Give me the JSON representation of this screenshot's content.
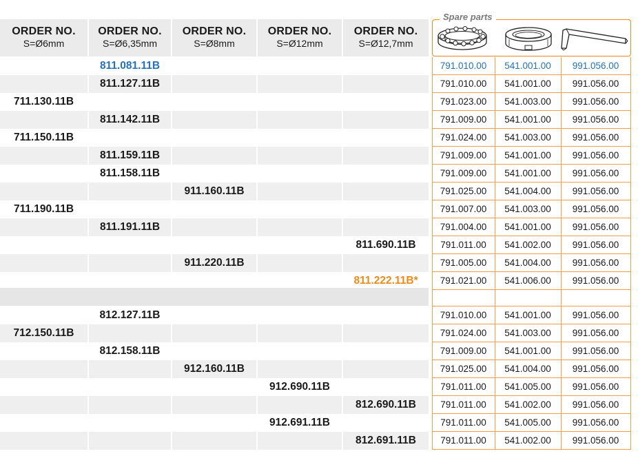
{
  "headers": [
    {
      "title": "ORDER NO.",
      "sub": "S=Ø6mm"
    },
    {
      "title": "ORDER NO.",
      "sub": "S=Ø6,35mm"
    },
    {
      "title": "ORDER NO.",
      "sub": "S=Ø8mm"
    },
    {
      "title": "ORDER NO.",
      "sub": "S=Ø12mm"
    },
    {
      "title": "ORDER NO.",
      "sub": "S=Ø12,7mm"
    }
  ],
  "spare_parts": {
    "title": "Spare parts",
    "icons": [
      "ball-bearing-icon",
      "bearing-ring-icon",
      "hex-key-icon"
    ]
  },
  "colors": {
    "orange": "#ec8a1c",
    "blue": "#2672b8",
    "stripe": "#efefef"
  },
  "rows": [
    {
      "orders": [
        "",
        "811.081.11B",
        "",
        "",
        ""
      ],
      "spares": [
        "791.010.00",
        "541.001.00",
        "991.056.00"
      ],
      "hl": "blue"
    },
    {
      "orders": [
        "",
        "811.127.11B",
        "",
        "",
        ""
      ],
      "spares": [
        "791.010.00",
        "541.001.00",
        "991.056.00"
      ]
    },
    {
      "orders": [
        "711.130.11B",
        "",
        "",
        "",
        ""
      ],
      "spares": [
        "791.023.00",
        "541.003.00",
        "991.056.00"
      ]
    },
    {
      "orders": [
        "",
        "811.142.11B",
        "",
        "",
        ""
      ],
      "spares": [
        "791.009.00",
        "541.001.00",
        "991.056.00"
      ]
    },
    {
      "orders": [
        "711.150.11B",
        "",
        "",
        "",
        ""
      ],
      "spares": [
        "791.024.00",
        "541.003.00",
        "991.056.00"
      ]
    },
    {
      "orders": [
        "",
        "811.159.11B",
        "",
        "",
        ""
      ],
      "spares": [
        "791.009.00",
        "541.001.00",
        "991.056.00"
      ]
    },
    {
      "orders": [
        "",
        "811.158.11B",
        "",
        "",
        ""
      ],
      "spares": [
        "791.009.00",
        "541.001.00",
        "991.056.00"
      ]
    },
    {
      "orders": [
        "",
        "",
        "911.160.11B",
        "",
        ""
      ],
      "spares": [
        "791.025.00",
        "541.004.00",
        "991.056.00"
      ]
    },
    {
      "orders": [
        "711.190.11B",
        "",
        "",
        "",
        ""
      ],
      "spares": [
        "791.007.00",
        "541.003.00",
        "991.056.00"
      ]
    },
    {
      "orders": [
        "",
        "811.191.11B",
        "",
        "",
        ""
      ],
      "spares": [
        "791.004.00",
        "541.001.00",
        "991.056.00"
      ]
    },
    {
      "orders": [
        "",
        "",
        "",
        "",
        "811.690.11B"
      ],
      "spares": [
        "791.011.00",
        "541.002.00",
        "991.056.00"
      ]
    },
    {
      "orders": [
        "",
        "",
        "911.220.11B",
        "",
        ""
      ],
      "spares": [
        "791.005.00",
        "541.004.00",
        "991.056.00"
      ]
    },
    {
      "orders": [
        "",
        "",
        "",
        "",
        "811.222.11B*"
      ],
      "spares": [
        "791.021.00",
        "541.006.00",
        "991.056.00"
      ],
      "hl": "orange"
    }
  ],
  "rows2": [
    {
      "orders": [
        "",
        "812.127.11B",
        "",
        "",
        ""
      ],
      "spares": [
        "791.010.00",
        "541.001.00",
        "991.056.00"
      ]
    },
    {
      "orders": [
        "712.150.11B",
        "",
        "",
        "",
        ""
      ],
      "spares": [
        "791.024.00",
        "541.003.00",
        "991.056.00"
      ]
    },
    {
      "orders": [
        "",
        "812.158.11B",
        "",
        "",
        ""
      ],
      "spares": [
        "791.009.00",
        "541.001.00",
        "991.056.00"
      ]
    },
    {
      "orders": [
        "",
        "",
        "912.160.11B",
        "",
        ""
      ],
      "spares": [
        "791.025.00",
        "541.004.00",
        "991.056.00"
      ]
    },
    {
      "orders": [
        "",
        "",
        "",
        "912.690.11B",
        ""
      ],
      "spares": [
        "791.011.00",
        "541.005.00",
        "991.056.00"
      ]
    },
    {
      "orders": [
        "",
        "",
        "",
        "",
        "812.690.11B"
      ],
      "spares": [
        "791.011.00",
        "541.002.00",
        "991.056.00"
      ]
    },
    {
      "orders": [
        "",
        "",
        "",
        "912.691.11B",
        ""
      ],
      "spares": [
        "791.011.00",
        "541.005.00",
        "991.056.00"
      ]
    },
    {
      "orders": [
        "",
        "",
        "",
        "",
        "812.691.11B"
      ],
      "spares": [
        "791.011.00",
        "541.002.00",
        "991.056.00"
      ]
    }
  ]
}
